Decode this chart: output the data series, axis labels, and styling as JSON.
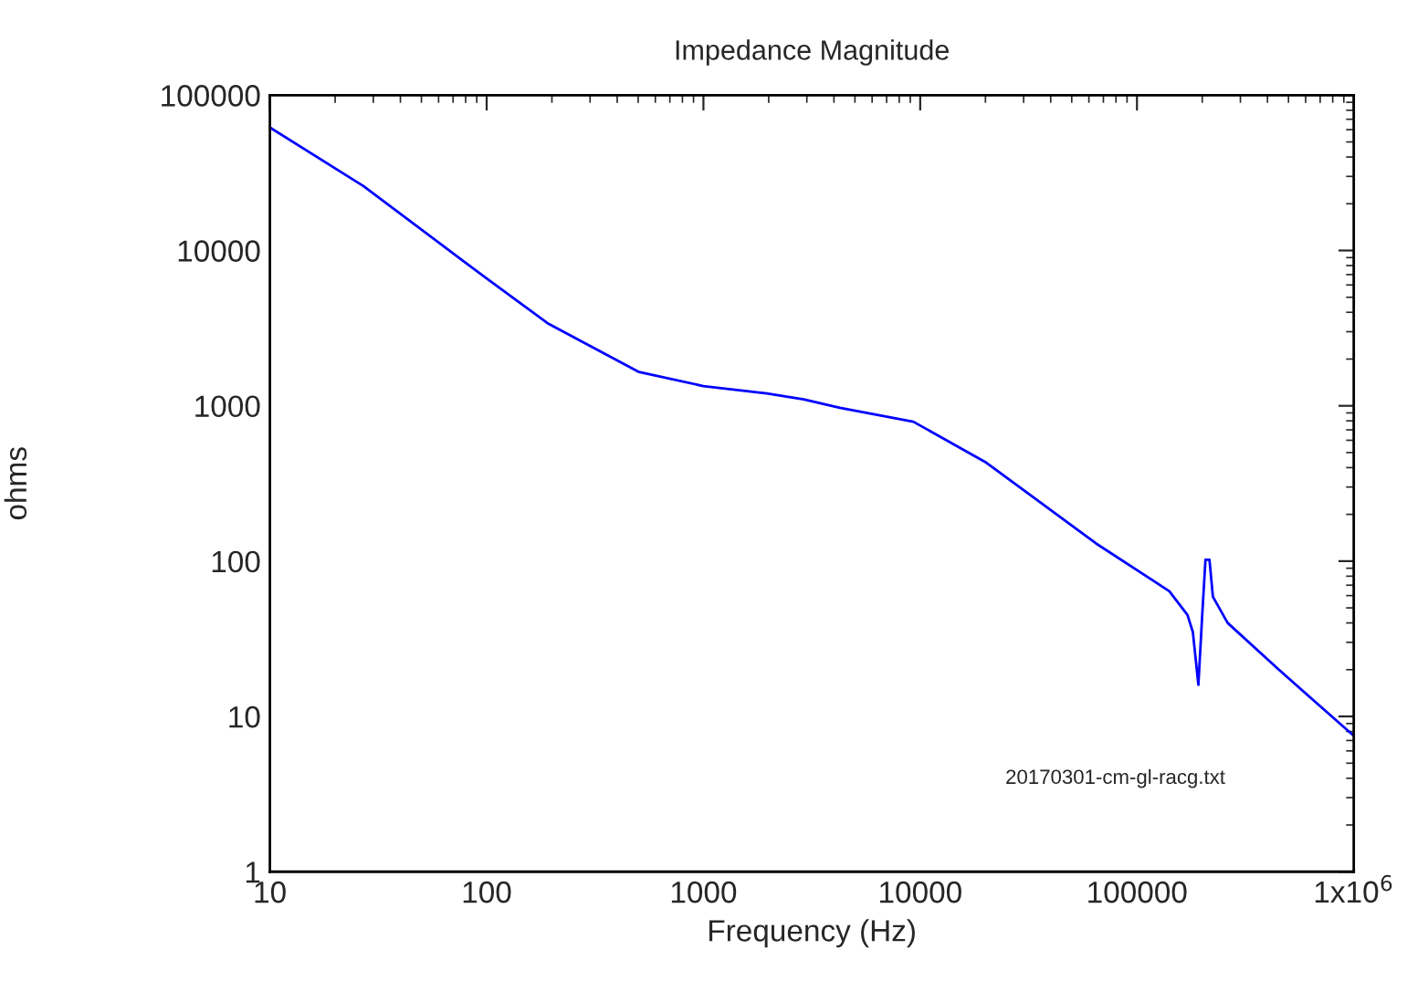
{
  "chart_data": {
    "type": "line",
    "title": "Impedance Magnitude",
    "xlabel": "Frequency (Hz)",
    "ylabel": "ohms",
    "log": "xy",
    "grid": false,
    "legend": false,
    "marker": "none",
    "line_style": "solid",
    "xlim": [
      10,
      1000000
    ],
    "ylim": [
      1,
      100000
    ],
    "xticks": [
      10,
      100,
      1000,
      10000,
      100000,
      {
        "value": 1000000,
        "label": "1x10$^{6}$"
      }
    ],
    "yticks": [
      1,
      10,
      100,
      1000,
      10000,
      100000
    ],
    "annotations": [
      "20170301-cm-gl-racg.txt"
    ],
    "series": [
      {
        "color": "#0000ff",
        "x": [
          10,
          27,
          100,
          191,
          505,
          1000,
          1960,
          2900,
          4260,
          9300,
          20200,
          64700,
          141000,
          171000,
          181000,
          192000,
          200000,
          207000,
          216000,
          224000,
          262000,
          451000,
          1000000
        ],
        "values": [
          62000,
          26000,
          6600,
          3400,
          1650,
          1340,
          1200,
          1100,
          970,
          790,
          430,
          130,
          64,
          45,
          35,
          16,
          45,
          102,
          102,
          59,
          40,
          20,
          7.5
        ]
      }
    ]
  }
}
